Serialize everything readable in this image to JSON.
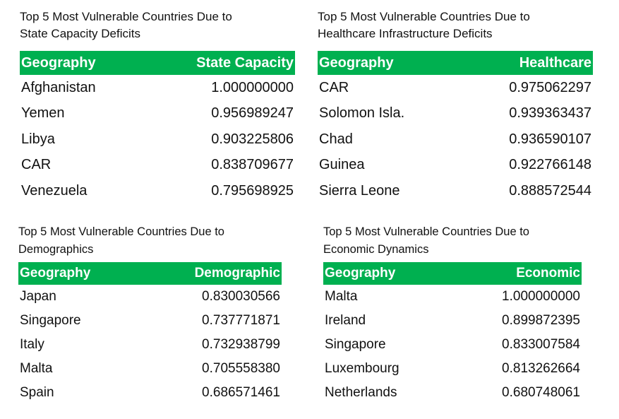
{
  "chart_data": [
    {
      "type": "table",
      "title": "Top 5 Most Vulnerable Countries Due to State Capacity Deficits",
      "columns": [
        "Geography",
        "State Capacity"
      ],
      "rows": [
        [
          "Afghanistan",
          "1.000000000"
        ],
        [
          "Yemen",
          "0.956989247"
        ],
        [
          "Libya",
          "0.903225806"
        ],
        [
          "CAR",
          "0.838709677"
        ],
        [
          "Venezuela",
          "0.795698925"
        ]
      ]
    },
    {
      "type": "table",
      "title": "Top 5 Most Vulnerable Countries Due to Healthcare Infrastructure Deficits",
      "columns": [
        "Geography",
        "Healthcare"
      ],
      "rows": [
        [
          "CAR",
          "0.975062297"
        ],
        [
          "Solomon Isla.",
          "0.939363437"
        ],
        [
          "Chad",
          "0.936590107"
        ],
        [
          "Guinea",
          "0.922766148"
        ],
        [
          "Sierra Leone",
          "0.888572544"
        ]
      ]
    },
    {
      "type": "table",
      "title": "Top 5 Most Vulnerable Countries Due to Demographics",
      "columns": [
        "Geography",
        "Demographic"
      ],
      "rows": [
        [
          "Japan",
          "0.830030566"
        ],
        [
          "Singapore",
          "0.737771871"
        ],
        [
          "Italy",
          "0.732938799"
        ],
        [
          "Malta",
          "0.705558380"
        ],
        [
          "Spain",
          "0.686571461"
        ]
      ]
    },
    {
      "type": "table",
      "title": "Top 5 Most Vulnerable Countries Due to Economic Dynamics",
      "columns": [
        "Geography",
        "Economic"
      ],
      "rows": [
        [
          "Malta",
          "1.000000000"
        ],
        [
          "Ireland",
          "0.899872395"
        ],
        [
          "Singapore",
          "0.833007584"
        ],
        [
          "Luxembourg",
          "0.813262664"
        ],
        [
          "Netherlands",
          "0.680748061"
        ]
      ]
    }
  ],
  "titles": {
    "state": [
      "Top 5 Most Vulnerable Countries Due to",
      "State Capacity Deficits"
    ],
    "health": [
      "Top 5 Most Vulnerable Countries Due to",
      "Healthcare Infrastructure Deficits"
    ],
    "demo": [
      "Top 5 Most Vulnerable Countries Due to",
      "Demographics"
    ],
    "econ": [
      "Top 5 Most Vulnerable Countries Due to",
      "Economic Dynamics"
    ]
  },
  "colors": {
    "header_bg": "#00b050",
    "header_text": "#ffffff"
  }
}
